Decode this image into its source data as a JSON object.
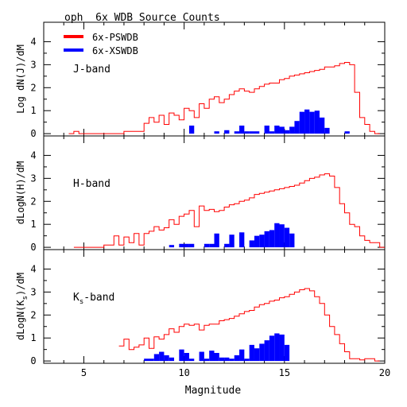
{
  "chart_data": {
    "type": "histogram",
    "title": "oph  6x WDB Source Counts",
    "xlabel": "Magnitude",
    "xlim": [
      3,
      20
    ],
    "ylim": [
      -0.1,
      4.5
    ],
    "x_ticks": [
      5,
      10,
      15,
      20
    ],
    "y_ticks": [
      0,
      1,
      2,
      3,
      4
    ],
    "bin_width": 0.25,
    "legend": {
      "placement": "top-left",
      "entries": [
        {
          "label": "6x-PSWDB",
          "color": "#ff0000",
          "style": "step-line"
        },
        {
          "label": "6x-XSWDB",
          "color": "#0000ff",
          "style": "filled-bars"
        }
      ]
    },
    "panels": [
      {
        "band_label": "J-band",
        "band_label_main": "J-band",
        "band_label_sub": "",
        "ylabel": "Log dN(J)/dM",
        "ylabel_main": "Log dN(J)/dM",
        "ylabel_sub": "",
        "series": [
          {
            "name": "6x-PSWDB",
            "color": "#ff0000",
            "x": [
              4.25,
              4.5,
              4.75,
              5.0,
              5.25,
              5.5,
              5.75,
              6.0,
              6.25,
              6.5,
              6.75,
              7.0,
              7.25,
              7.5,
              7.75,
              8.0,
              8.25,
              8.5,
              8.75,
              9.0,
              9.25,
              9.5,
              9.75,
              10.0,
              10.25,
              10.5,
              10.75,
              11.0,
              11.25,
              11.5,
              11.75,
              12.0,
              12.25,
              12.5,
              12.75,
              13.0,
              13.25,
              13.5,
              13.75,
              14.0,
              14.25,
              14.5,
              14.75,
              15.0,
              15.25,
              15.5,
              15.75,
              16.0,
              16.25,
              16.5,
              16.75,
              17.0,
              17.25,
              17.5,
              17.75,
              18.0,
              18.25,
              18.5,
              18.75,
              19.0,
              19.25,
              19.5
            ],
            "values": [
              0,
              0.1,
              0,
              0,
              0,
              0,
              0,
              0,
              0,
              0,
              0,
              0.1,
              0.1,
              0.1,
              0.1,
              0.45,
              0.7,
              0.5,
              0.8,
              0.4,
              0.9,
              0.8,
              0.6,
              1.1,
              1.0,
              0.7,
              1.3,
              1.1,
              1.5,
              1.6,
              1.35,
              1.5,
              1.7,
              1.85,
              1.95,
              1.85,
              1.8,
              1.95,
              2.05,
              2.15,
              2.2,
              2.2,
              2.35,
              2.4,
              2.5,
              2.55,
              2.6,
              2.65,
              2.7,
              2.75,
              2.8,
              2.9,
              2.9,
              2.95,
              3.05,
              3.1,
              3.0,
              1.8,
              0.7,
              0.4,
              0.1,
              0
            ]
          },
          {
            "name": "6x-XSWDB",
            "color": "#0000ff",
            "x": [
              10.25,
              11.5,
              12.0,
              12.5,
              12.75,
              13.0,
              13.25,
              13.5,
              14.0,
              14.25,
              14.5,
              14.75,
              15.0,
              15.25,
              15.5,
              15.75,
              16.0,
              16.25,
              16.5,
              16.75,
              17.0,
              18.0
            ],
            "values": [
              0.35,
              0.1,
              0.15,
              0.1,
              0.35,
              0.1,
              0.1,
              0.1,
              0.35,
              0.1,
              0.35,
              0.3,
              0.15,
              0.3,
              0.55,
              0.95,
              1.05,
              0.95,
              1.0,
              0.7,
              0.25,
              0.1
            ]
          }
        ]
      },
      {
        "band_label": "H-band",
        "band_label_main": "H-band",
        "band_label_sub": "",
        "ylabel": "dLogN(H)/dM",
        "ylabel_main": "dLogN(H)/dM",
        "ylabel_sub": "",
        "series": [
          {
            "name": "6x-PSWDB",
            "color": "#ff0000",
            "x": [
              4.5,
              4.75,
              5.0,
              5.25,
              5.5,
              5.75,
              6.0,
              6.25,
              6.5,
              6.75,
              7.0,
              7.25,
              7.5,
              7.75,
              8.0,
              8.25,
              8.5,
              8.75,
              9.0,
              9.25,
              9.5,
              9.75,
              10.0,
              10.25,
              10.5,
              10.75,
              11.0,
              11.25,
              11.5,
              11.75,
              12.0,
              12.25,
              12.5,
              12.75,
              13.0,
              13.25,
              13.5,
              13.75,
              14.0,
              14.25,
              14.5,
              14.75,
              15.0,
              15.25,
              15.5,
              15.75,
              16.0,
              16.25,
              16.5,
              16.75,
              17.0,
              17.25,
              17.5,
              17.75,
              18.0,
              18.25,
              18.5,
              18.75,
              19.0,
              19.25,
              19.5,
              19.75
            ],
            "values": [
              0,
              0,
              0,
              0,
              0,
              0,
              0.1,
              0.1,
              0.5,
              0.1,
              0.45,
              0.2,
              0.6,
              0.1,
              0.6,
              0.7,
              0.9,
              0.75,
              0.85,
              1.2,
              1.0,
              1.35,
              1.45,
              1.6,
              0.9,
              1.8,
              1.6,
              1.65,
              1.55,
              1.6,
              1.75,
              1.85,
              1.9,
              2.0,
              2.05,
              2.15,
              2.3,
              2.35,
              2.4,
              2.45,
              2.5,
              2.55,
              2.6,
              2.65,
              2.7,
              2.8,
              2.9,
              3.0,
              3.05,
              3.15,
              3.2,
              3.1,
              2.6,
              1.9,
              1.5,
              1.0,
              0.9,
              0.5,
              0.3,
              0.2,
              0.2,
              0
            ]
          },
          {
            "name": "6x-XSWDB",
            "color": "#0000ff",
            "x": [
              9.25,
              9.75,
              10.0,
              10.25,
              11.0,
              11.25,
              11.5,
              12.0,
              12.25,
              12.75,
              13.25,
              13.5,
              13.75,
              14.0,
              14.25,
              14.5,
              14.75,
              15.0,
              15.25
            ],
            "values": [
              0.1,
              0.15,
              0.15,
              0.15,
              0.15,
              0.15,
              0.6,
              0.15,
              0.55,
              0.65,
              0.3,
              0.5,
              0.55,
              0.7,
              0.75,
              1.05,
              1.0,
              0.85,
              0.6
            ]
          }
        ]
      },
      {
        "band_label": "Ks-band",
        "band_label_main": "K",
        "band_label_sub": "s",
        "band_label_tail": "-band",
        "ylabel": "dLogN(Ks)/dM",
        "ylabel_main": "dLogN(K",
        "ylabel_sub": "s",
        "ylabel_tail": ")/dM",
        "series": [
          {
            "name": "6x-PSWDB",
            "color": "#ff0000",
            "x": [
              6.75,
              7.0,
              7.25,
              7.5,
              7.75,
              8.0,
              8.25,
              8.5,
              8.75,
              9.0,
              9.25,
              9.5,
              9.75,
              10.0,
              10.25,
              10.5,
              10.75,
              11.0,
              11.25,
              11.5,
              11.75,
              12.0,
              12.25,
              12.5,
              12.75,
              13.0,
              13.25,
              13.5,
              13.75,
              14.0,
              14.25,
              14.5,
              14.75,
              15.0,
              15.25,
              15.5,
              15.75,
              16.0,
              16.25,
              16.5,
              16.75,
              17.0,
              17.25,
              17.5,
              17.75,
              18.0,
              18.25,
              18.5,
              18.75,
              19.0,
              19.25,
              19.5
            ],
            "values": [
              0.65,
              0.95,
              0.5,
              0.6,
              0.7,
              1.0,
              0.55,
              1.05,
              0.95,
              1.15,
              1.4,
              1.25,
              1.5,
              1.6,
              1.55,
              1.6,
              1.35,
              1.55,
              1.6,
              1.6,
              1.75,
              1.8,
              1.85,
              1.95,
              2.05,
              2.15,
              2.2,
              2.35,
              2.45,
              2.5,
              2.6,
              2.65,
              2.75,
              2.8,
              2.9,
              3.0,
              3.1,
              3.15,
              3.05,
              2.8,
              2.5,
              2.0,
              1.5,
              1.15,
              0.75,
              0.4,
              0.1,
              0.1,
              0.05,
              0.1,
              0.1,
              0
            ]
          },
          {
            "name": "6x-XSWDB",
            "color": "#0000ff",
            "x": [
              8.0,
              8.25,
              8.5,
              8.75,
              9.0,
              9.25,
              9.75,
              10.0,
              10.25,
              10.75,
              11.0,
              11.25,
              11.5,
              11.75,
              12.0,
              12.25,
              12.5,
              12.75,
              13.0,
              13.25,
              13.5,
              13.75,
              14.0,
              14.25,
              14.5,
              14.75,
              15.0
            ],
            "values": [
              0.1,
              0.1,
              0.3,
              0.4,
              0.25,
              0.15,
              0.5,
              0.35,
              0.1,
              0.4,
              0.1,
              0.45,
              0.35,
              0.15,
              0.15,
              0.1,
              0.25,
              0.5,
              0.1,
              0.7,
              0.55,
              0.75,
              0.9,
              1.1,
              1.2,
              1.15,
              0.7
            ]
          }
        ]
      }
    ]
  }
}
